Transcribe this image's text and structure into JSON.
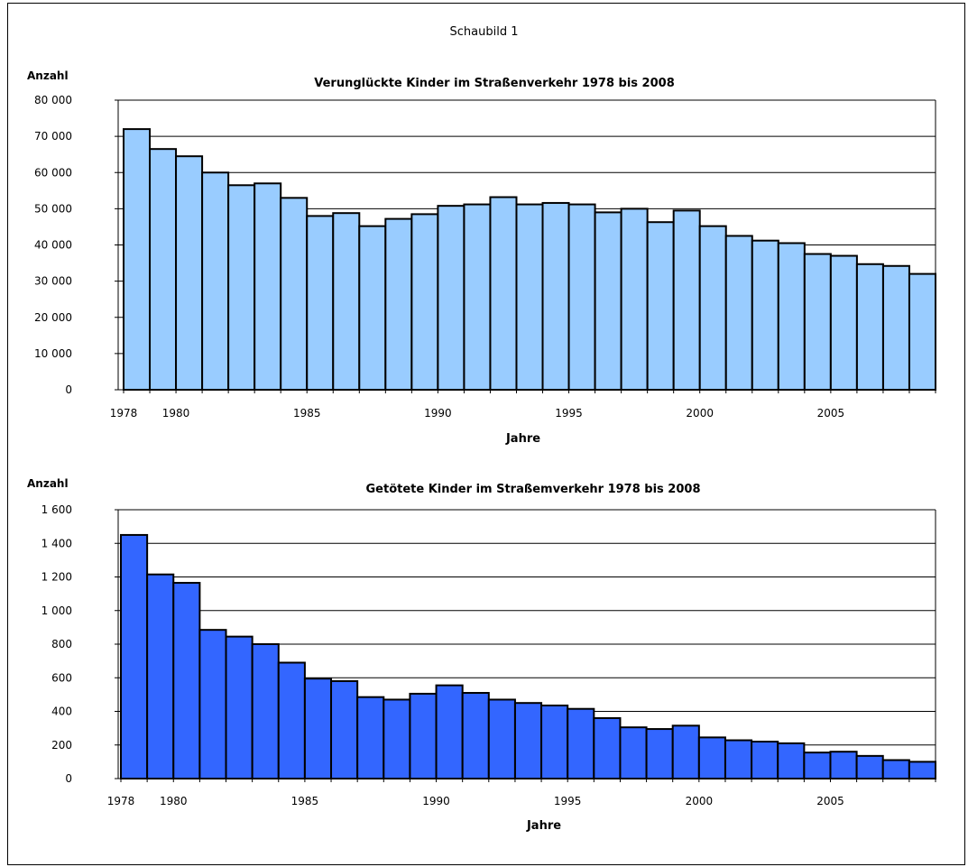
{
  "figure_label": "Schaubild 1",
  "chart_data": [
    {
      "type": "bar",
      "title": "Verunglückte  Kinder im Straßenverkehr 1978 bis 2008",
      "ylabel": "Anzahl",
      "xlabel": "Jahre",
      "color": "#99CCFF",
      "ylim": [
        0,
        80000
      ],
      "yticks": [
        0,
        10000,
        20000,
        30000,
        40000,
        50000,
        60000,
        70000,
        80000
      ],
      "ytick_labels": [
        "0",
        "10 000",
        "20 000",
        "30 000",
        "40 000",
        "50 000",
        "60 000",
        "70 000",
        "80 000"
      ],
      "xtick_labels": [
        "1978",
        "1980",
        "1985",
        "1990",
        "1995",
        "2000",
        "2005"
      ],
      "xtick_years": [
        1978,
        1980,
        1985,
        1990,
        1995,
        2000,
        2005
      ],
      "grid": true,
      "categories": [
        1978,
        1979,
        1980,
        1981,
        1982,
        1983,
        1984,
        1985,
        1986,
        1987,
        1988,
        1989,
        1990,
        1991,
        1992,
        1993,
        1994,
        1995,
        1996,
        1997,
        1998,
        1999,
        2000,
        2001,
        2002,
        2003,
        2004,
        2005,
        2006,
        2007,
        2008
      ],
      "values": [
        72000,
        66500,
        64500,
        60000,
        56500,
        57000,
        53000,
        48000,
        48800,
        45200,
        47200,
        48500,
        50800,
        51200,
        53200,
        51200,
        51600,
        51200,
        49000,
        50000,
        46300,
        49500,
        45200,
        42500,
        41200,
        40500,
        37500,
        37000,
        34700,
        34200,
        32000
      ]
    },
    {
      "type": "bar",
      "title": "Getötete Kinder im Straßemverkehr 1978 bis 2008",
      "ylabel": "Anzahl",
      "xlabel": "Jahre",
      "color": "#3366FF",
      "ylim": [
        0,
        1600
      ],
      "yticks": [
        0,
        200,
        400,
        600,
        800,
        1000,
        1200,
        1400,
        1600
      ],
      "ytick_labels": [
        "0",
        "200",
        "400",
        "600",
        "800",
        "1 000",
        "1 200",
        "1 400",
        "1 600"
      ],
      "xtick_labels": [
        "1978",
        "1980",
        "1985",
        "1990",
        "1995",
        "2000",
        "2005"
      ],
      "xtick_years": [
        1978,
        1980,
        1985,
        1990,
        1995,
        2000,
        2005
      ],
      "grid": true,
      "categories": [
        1978,
        1979,
        1980,
        1981,
        1982,
        1983,
        1984,
        1985,
        1986,
        1987,
        1988,
        1989,
        1990,
        1991,
        1992,
        1993,
        1994,
        1995,
        1996,
        1997,
        1998,
        1999,
        2000,
        2001,
        2002,
        2003,
        2004,
        2005,
        2006,
        2007,
        2008
      ],
      "values": [
        1450,
        1215,
        1165,
        885,
        845,
        800,
        690,
        595,
        580,
        485,
        470,
        505,
        555,
        510,
        470,
        450,
        435,
        415,
        360,
        305,
        295,
        315,
        245,
        228,
        220,
        210,
        155,
        160,
        135,
        110,
        100
      ]
    }
  ]
}
